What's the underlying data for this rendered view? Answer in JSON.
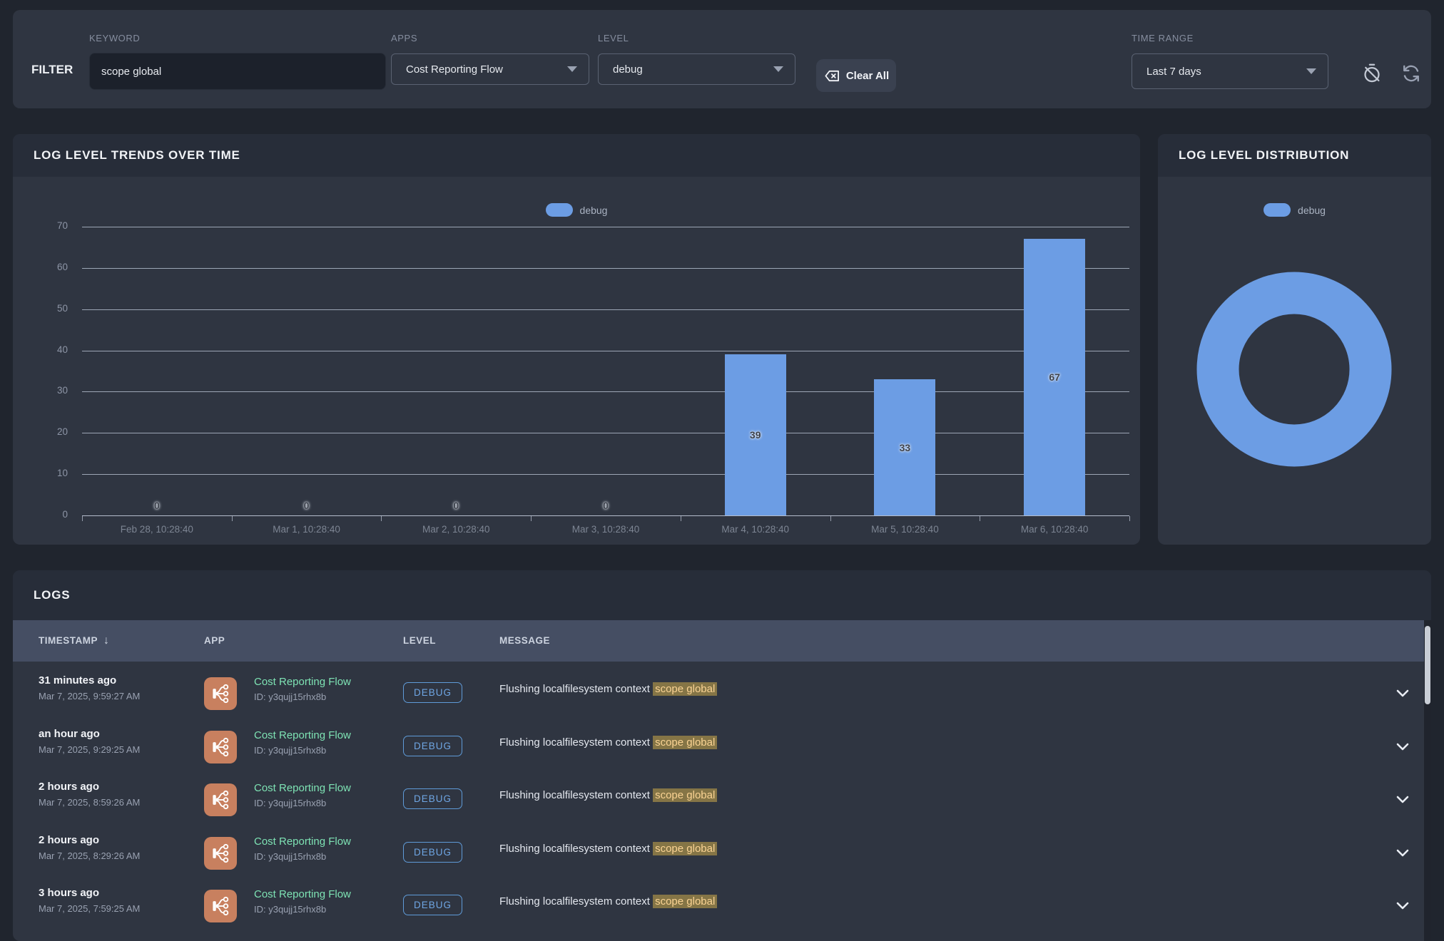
{
  "filter_bar": {
    "title": "FILTER",
    "keyword": {
      "label": "KEYWORD",
      "value": "scope global"
    },
    "apps": {
      "label": "APPS",
      "value": "Cost Reporting Flow"
    },
    "level": {
      "label": "LEVEL",
      "value": "debug"
    },
    "clear_all_label": "Clear All",
    "time_range": {
      "label": "TIME RANGE",
      "value": "Last 7 days"
    },
    "icons": {
      "clear_all": "backspace-icon",
      "auto_refresh_off": "timer-off-icon",
      "refresh": "refresh-icon"
    }
  },
  "trends_panel": {
    "title": "LOG LEVEL TRENDS OVER TIME",
    "legend": "debug"
  },
  "distribution_panel": {
    "title": "LOG LEVEL DISTRIBUTION",
    "legend": "debug"
  },
  "chart_data": [
    {
      "type": "bar",
      "title": "LOG LEVEL TRENDS OVER TIME",
      "categories": [
        "Feb 28, 10:28:40",
        "Mar 1, 10:28:40",
        "Mar 2, 10:28:40",
        "Mar 3, 10:28:40",
        "Mar 4, 10:28:40",
        "Mar 5, 10:28:40",
        "Mar 6, 10:28:40"
      ],
      "series": [
        {
          "name": "debug",
          "values": [
            0,
            0,
            0,
            0,
            39,
            33,
            67
          ]
        }
      ],
      "xlabel": "",
      "ylabel": "",
      "ylim": [
        0,
        70
      ],
      "yticks": [
        0,
        10,
        20,
        30,
        40,
        50,
        60,
        70
      ],
      "grid": true,
      "legend_position": "top-center",
      "bar_color": "#6c9de4",
      "data_labels": true
    },
    {
      "type": "pie",
      "title": "LOG LEVEL DISTRIBUTION",
      "labels": [
        "debug"
      ],
      "values": [
        100
      ],
      "unit": "%",
      "donut": true,
      "color": "#6c9de4",
      "legend_position": "top-center"
    }
  ],
  "logs": {
    "title": "LOGS",
    "columns": [
      "TIMESTAMP",
      "APP",
      "LEVEL",
      "MESSAGE"
    ],
    "sort_column": "TIMESTAMP",
    "sort_direction": "desc",
    "rows": [
      {
        "relative_time": "31 minutes ago",
        "timestamp": "Mar 7, 2025, 9:59:27 AM",
        "app": "Cost Reporting Flow",
        "app_id": "ID: y3qujj15rhx8b",
        "level": "DEBUG",
        "message_prefix": "Flushing localfilesystem context ",
        "message_highlight": "scope global"
      },
      {
        "relative_time": "an hour ago",
        "timestamp": "Mar 7, 2025, 9:29:25 AM",
        "app": "Cost Reporting Flow",
        "app_id": "ID: y3qujj15rhx8b",
        "level": "DEBUG",
        "message_prefix": "Flushing localfilesystem context ",
        "message_highlight": "scope global"
      },
      {
        "relative_time": "2 hours ago",
        "timestamp": "Mar 7, 2025, 8:59:26 AM",
        "app": "Cost Reporting Flow",
        "app_id": "ID: y3qujj15rhx8b",
        "level": "DEBUG",
        "message_prefix": "Flushing localfilesystem context ",
        "message_highlight": "scope global"
      },
      {
        "relative_time": "2 hours ago",
        "timestamp": "Mar 7, 2025, 8:29:26 AM",
        "app": "Cost Reporting Flow",
        "app_id": "ID: y3qujj15rhx8b",
        "level": "DEBUG",
        "message_prefix": "Flushing localfilesystem context ",
        "message_highlight": "scope global"
      },
      {
        "relative_time": "3 hours ago",
        "timestamp": "Mar 7, 2025, 7:59:25 AM",
        "app": "Cost Reporting Flow",
        "app_id": "ID: y3qujj15rhx8b",
        "level": "DEBUG",
        "message_prefix": "Flushing localfilesystem context ",
        "message_highlight": "scope global"
      }
    ]
  },
  "colors": {
    "accent_blue": "#6c9de4",
    "badge_border": "#5f9bd8",
    "app_tile": "#c8805f",
    "app_name": "#7ee3b4",
    "highlight_bg": "#857546",
    "highlight_text": "#fad393",
    "panel_bg": "#2f3541",
    "panel_header_bg": "#272d39",
    "table_header_bg": "#454e63",
    "page_bg": "#20252e"
  }
}
